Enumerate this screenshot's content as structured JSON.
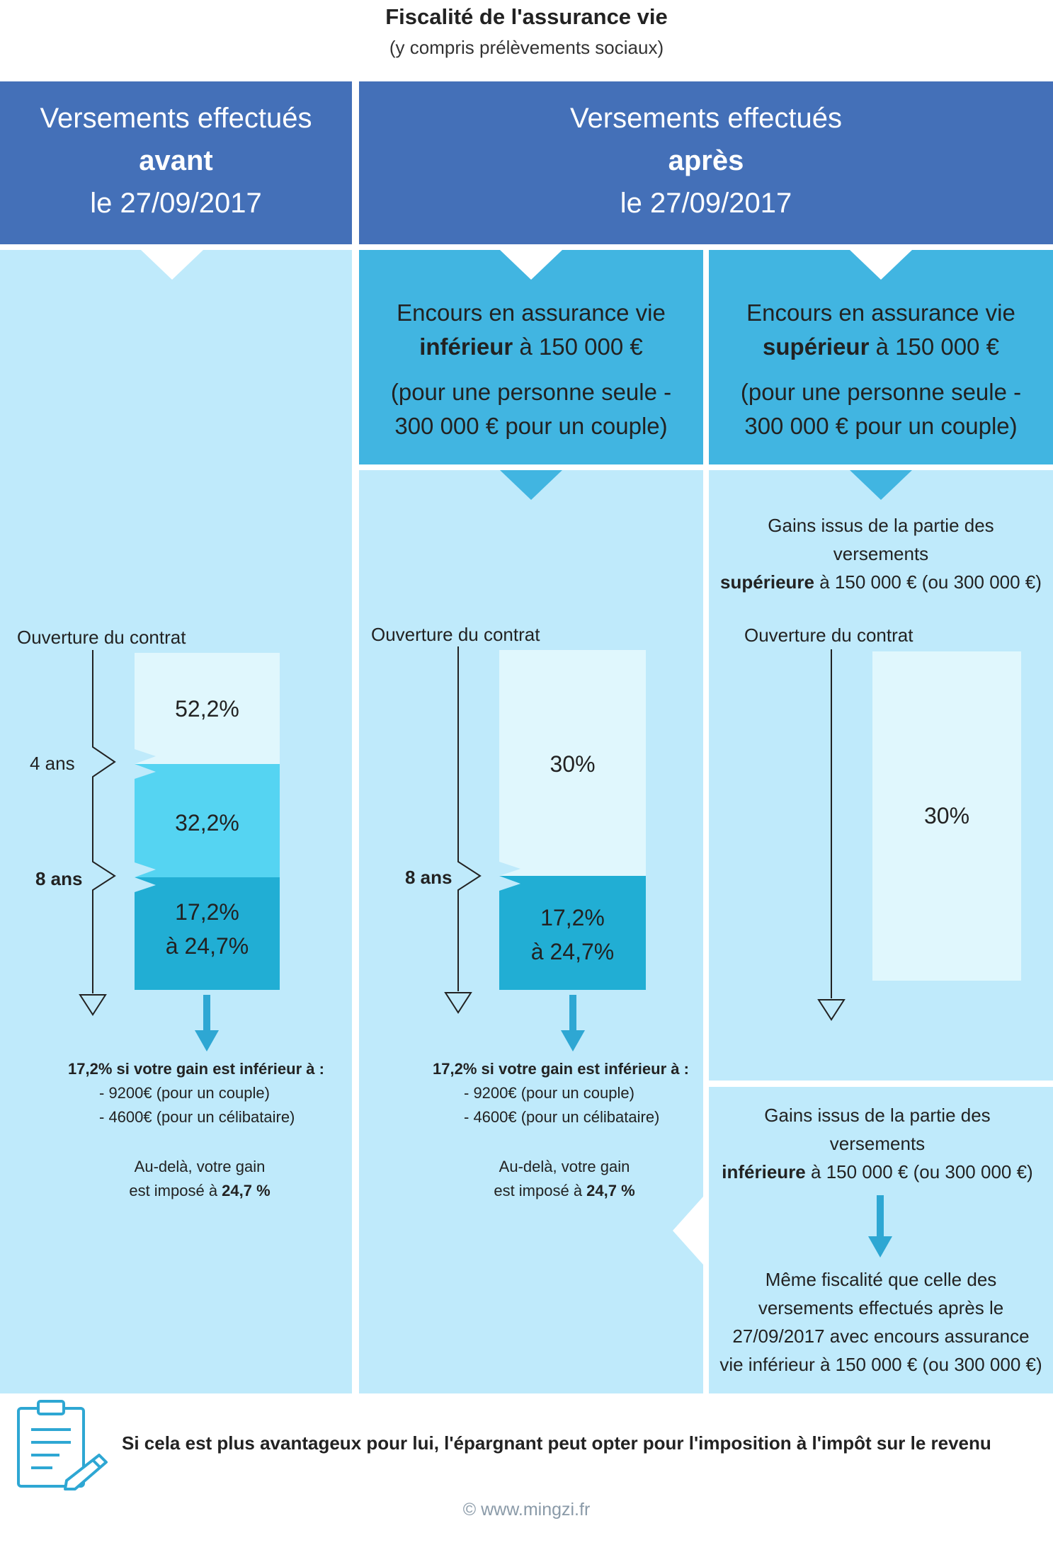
{
  "title": "Fiscalité de l'assurance vie",
  "subtitle": "(y compris prélèvements sociaux)",
  "header_left": {
    "line1": "Versements effectués",
    "line2": "avant",
    "line3": "le 27/09/2017"
  },
  "header_right": {
    "line1": "Versements effectués",
    "line2": "après",
    "line3": "le 27/09/2017"
  },
  "encours_inferieur": {
    "line1": "Encours en assurance vie",
    "bold": "inférieur",
    "amount": " à 150 000 €",
    "line3": "(pour une personne seule -",
    "line4": "300 000 € pour un couple)"
  },
  "encours_superieur": {
    "line1": "Encours en assurance vie",
    "bold": "supérieur",
    "amount": " à 150 000 €",
    "line3": "(pour une personne seule -",
    "line4": "300 000 € pour un couple)"
  },
  "gains_sup": {
    "line1": "Gains issus de la partie des",
    "line2": "versements",
    "bold": "supérieure",
    "rest": " à 150 000 € (ou 300 000 €)"
  },
  "gains_inf": {
    "line1": "Gains issus de la partie des",
    "line2": "versements",
    "bold": "inférieure",
    "rest": " à 150 000 € (ou 300 000 €)"
  },
  "meme_fiscalite": {
    "line1": "Même fiscalité que celle des",
    "line2": "versements effectués après le",
    "line3": "27/09/2017 avec encours assurance",
    "line4": "vie inférieur à 150 000 € (ou 300 000 €)"
  },
  "timeline": {
    "ouverture": "Ouverture du contrat",
    "four_years": "4 ans",
    "eight_years": "8 ans"
  },
  "rates_left": {
    "first": "52,2%",
    "second": "32,2%",
    "third_a": "17,2%",
    "third_b": "à 24,7%"
  },
  "rates_middle": {
    "first": "30%",
    "second_a": "17,2%",
    "second_b": "à 24,7%"
  },
  "rates_right": {
    "first": "30%"
  },
  "note": {
    "headline": "17,2% si votre gain est inférieur à :",
    "couple": "- 9200€ (pour un couple)",
    "single": "- 4600€ (pour un célibataire)",
    "beyond1": "Au-delà, votre gain",
    "beyond2_prefix": "est imposé à ",
    "beyond2_bold": "24,7 %"
  },
  "footer": {
    "text": "Si cela est plus avantageux pour lui, l'épargnant peut opter pour l'imposition à l'impôt sur le revenu",
    "copyright": "© www.mingzi.fr"
  },
  "colors": {
    "header": "#4470b8",
    "light": "#bfeafb",
    "medium": "#41b5e1",
    "band_pale": "#e0f7fd",
    "band_mid": "#55d4f2",
    "band_dark": "#21aed4",
    "arrow": "#2ea7d3"
  }
}
